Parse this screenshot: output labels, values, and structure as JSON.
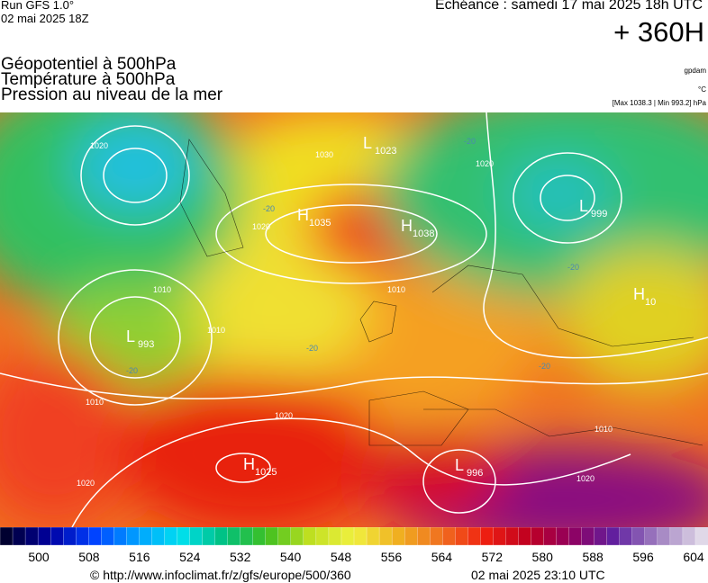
{
  "header": {
    "run": "Run GFS 1.0°",
    "run_date": "02 mai 2025 18Z",
    "echeance": "Echéance : samedi 17 mai 2025 18h UTC",
    "lead": "+ 360H",
    "titles": [
      "Géopotentiel à 500hPa",
      "Température à 500hPa",
      "Pression au niveau de la mer"
    ],
    "units": [
      "gpdam",
      "°C",
      "[Max 1038.3 | Min 993.2] hPa"
    ]
  },
  "map": {
    "centers": [
      {
        "kind": "L",
        "value": 1023
      },
      {
        "kind": "H",
        "value": 1035
      },
      {
        "kind": "H",
        "value": 1038
      },
      {
        "kind": "L",
        "value": 999
      },
      {
        "kind": "L",
        "value": 993
      },
      {
        "kind": "H",
        "value": 10
      },
      {
        "kind": "H",
        "value": 1025
      },
      {
        "kind": "L",
        "value": 996
      }
    ],
    "isobar_labels": [
      1020,
      1030,
      1020,
      1010,
      1010,
      1010,
      1020,
      1020,
      1010,
      1010,
      1020,
      1020
    ],
    "temperature_labels": [
      -20,
      -20,
      -20,
      -20,
      -20,
      -20
    ]
  },
  "colorbar": {
    "ticks": [
      500,
      508,
      516,
      524,
      532,
      540,
      548,
      556,
      564,
      572,
      580,
      588,
      596,
      604
    ]
  },
  "footer": {
    "source": "© http://www.infoclimat.fr/z/gfs/europe/500/360",
    "timestamp": "02 mai 2025 23:10 UTC"
  }
}
